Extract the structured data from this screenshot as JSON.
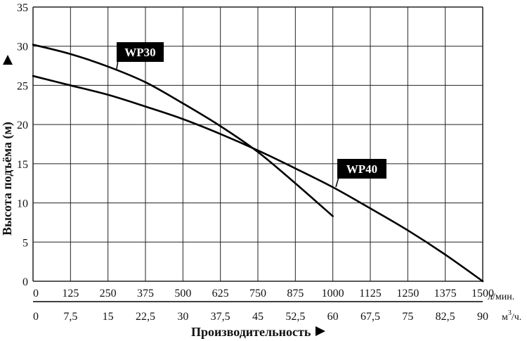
{
  "chart_data": {
    "type": "line",
    "xlabel": "Производительность",
    "ylabel": "Высота подъёма (м)",
    "x_unit_primary": "л/мин.",
    "x_unit_secondary": "м³/ч.",
    "x_unit_secondary_parts": {
      "base": "м",
      "sup": "3",
      "tail": "/ч."
    },
    "x_ticks_primary": [
      "0",
      "125",
      "250",
      "375",
      "500",
      "625",
      "750",
      "875",
      "1000",
      "1125",
      "1250",
      "1375",
      "1500"
    ],
    "x_ticks_secondary": [
      "0",
      "7,5",
      "15",
      "22,5",
      "30",
      "37,5",
      "45",
      "52,5",
      "60",
      "67,5",
      "75",
      "82,5",
      "90"
    ],
    "y_ticks": [
      "0",
      "5",
      "10",
      "15",
      "20",
      "25",
      "30",
      "35"
    ],
    "xlim": [
      0,
      1500
    ],
    "ylim": [
      0,
      35
    ],
    "grid": true,
    "series": [
      {
        "name": "WP30",
        "x": [
          0,
          125,
          250,
          375,
          500,
          625,
          750,
          875,
          1000
        ],
        "y": [
          30.2,
          29.0,
          27.4,
          25.4,
          22.7,
          19.8,
          16.5,
          12.5,
          8.3
        ]
      },
      {
        "name": "WP40",
        "x": [
          0,
          125,
          250,
          375,
          500,
          625,
          750,
          875,
          1000,
          1125,
          1250,
          1375,
          1500
        ],
        "y": [
          26.2,
          25.0,
          23.8,
          22.3,
          20.7,
          18.8,
          16.7,
          14.4,
          12.0,
          9.3,
          6.5,
          3.4,
          0
        ]
      }
    ],
    "colors": {
      "line": "#000000",
      "grid": "#222222",
      "label_bg": "#000000",
      "label_text": "#ffffff"
    }
  }
}
